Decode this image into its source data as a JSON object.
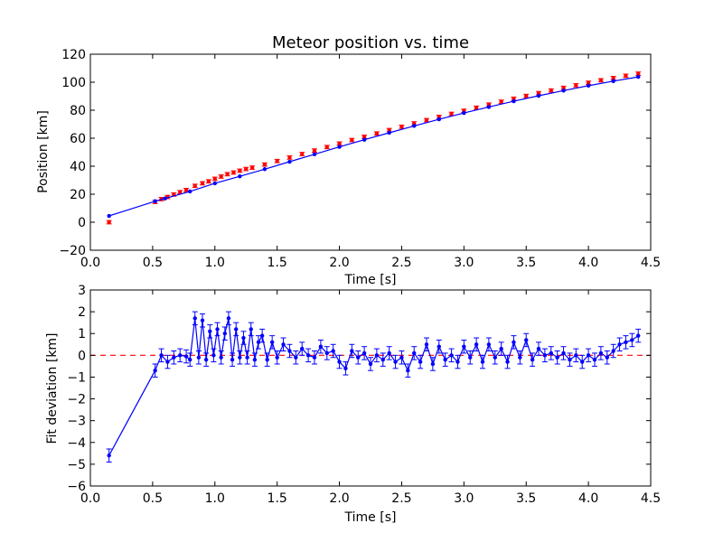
{
  "chart_data": [
    {
      "type": "line",
      "title": "Meteor position vs. time",
      "xlabel": "Time [s]",
      "ylabel": "Position [km]",
      "xlim": [
        0.0,
        4.5
      ],
      "ylim": [
        -20,
        120
      ],
      "xticks": [
        0.0,
        0.5,
        1.0,
        1.5,
        2.0,
        2.5,
        3.0,
        3.5,
        4.0,
        4.5
      ],
      "xtick_labels": [
        "0.0",
        "0.5",
        "1.0",
        "1.5",
        "2.0",
        "2.5",
        "3.0",
        "3.5",
        "4.0",
        "4.5"
      ],
      "yticks": [
        -20,
        0,
        20,
        40,
        60,
        80,
        100,
        120
      ],
      "ytick_labels": [
        "−20",
        "0",
        "20",
        "40",
        "60",
        "80",
        "100",
        "120"
      ],
      "grid": false,
      "series": [
        {
          "style": "red error-bar points",
          "color": "#ff0000",
          "x": [
            0.15,
            0.52,
            0.57,
            0.62,
            0.67,
            0.72,
            0.77,
            0.84,
            0.9,
            0.95,
            1.0,
            1.05,
            1.1,
            1.15,
            1.2,
            1.25,
            1.3,
            1.4,
            1.5,
            1.6,
            1.7,
            1.8,
            1.9,
            2.0,
            2.1,
            2.2,
            2.3,
            2.4,
            2.5,
            2.6,
            2.7,
            2.8,
            2.9,
            3.0,
            3.1,
            3.2,
            3.3,
            3.4,
            3.5,
            3.6,
            3.7,
            3.8,
            3.9,
            4.0,
            4.1,
            4.2,
            4.3,
            4.4
          ],
          "y": [
            0.0,
            14.5,
            16.5,
            18.0,
            19.8,
            21.5,
            23.0,
            26.0,
            27.8,
            29.2,
            31.0,
            32.6,
            34.3,
            35.5,
            36.8,
            38.0,
            39.0,
            41.2,
            43.7,
            46.2,
            48.7,
            51.2,
            53.7,
            56.2,
            58.7,
            61.0,
            63.4,
            65.8,
            68.2,
            70.6,
            72.9,
            75.2,
            77.4,
            79.6,
            81.8,
            84.0,
            86.1,
            88.2,
            90.2,
            92.2,
            94.1,
            96.0,
            97.8,
            99.6,
            101.4,
            103.0,
            104.6,
            106.1
          ],
          "yerr": 1.2
        },
        {
          "style": "blue line with points (fit)",
          "color": "#0000ff",
          "x": [
            0.15,
            0.52,
            0.6,
            0.8,
            1.0,
            1.2,
            1.4,
            1.6,
            1.8,
            2.0,
            2.2,
            2.4,
            2.6,
            2.8,
            3.0,
            3.2,
            3.4,
            3.6,
            3.8,
            4.0,
            4.2,
            4.4
          ],
          "y": [
            4.5,
            15.0,
            17.0,
            22.0,
            27.8,
            32.8,
            37.9,
            43.2,
            48.5,
            53.8,
            58.9,
            63.9,
            68.8,
            73.5,
            78.0,
            82.3,
            86.4,
            90.3,
            94.0,
            97.5,
            100.8,
            103.8
          ]
        }
      ]
    },
    {
      "type": "line",
      "title": "",
      "xlabel": "Time [s]",
      "ylabel": "Fit deviation [km]",
      "xlim": [
        0.0,
        4.5
      ],
      "ylim": [
        -6,
        3
      ],
      "xticks": [
        0.0,
        0.5,
        1.0,
        1.5,
        2.0,
        2.5,
        3.0,
        3.5,
        4.0,
        4.5
      ],
      "xtick_labels": [
        "0.0",
        "0.5",
        "1.0",
        "1.5",
        "2.0",
        "2.5",
        "3.0",
        "3.5",
        "4.0",
        "4.5"
      ],
      "yticks": [
        -6,
        -5,
        -4,
        -3,
        -2,
        -1,
        0,
        1,
        2,
        3
      ],
      "ytick_labels": [
        "−6",
        "−5",
        "−4",
        "−3",
        "−2",
        "−1",
        "0",
        "1",
        "2",
        "3"
      ],
      "grid": false,
      "reference_line": {
        "y": 0,
        "color": "#ff0000",
        "style": "dashed"
      },
      "series": [
        {
          "style": "blue line with error-bar points",
          "color": "#0000ff",
          "x": [
            0.15,
            0.52,
            0.57,
            0.62,
            0.67,
            0.72,
            0.77,
            0.8,
            0.84,
            0.87,
            0.9,
            0.93,
            0.96,
            0.99,
            1.02,
            1.05,
            1.08,
            1.11,
            1.14,
            1.17,
            1.2,
            1.23,
            1.26,
            1.29,
            1.32,
            1.35,
            1.38,
            1.42,
            1.46,
            1.5,
            1.55,
            1.6,
            1.65,
            1.7,
            1.75,
            1.8,
            1.85,
            1.9,
            1.95,
            2.0,
            2.05,
            2.1,
            2.15,
            2.2,
            2.25,
            2.3,
            2.35,
            2.4,
            2.45,
            2.5,
            2.55,
            2.6,
            2.65,
            2.7,
            2.75,
            2.8,
            2.85,
            2.9,
            2.95,
            3.0,
            3.05,
            3.1,
            3.15,
            3.2,
            3.25,
            3.3,
            3.35,
            3.4,
            3.45,
            3.5,
            3.55,
            3.6,
            3.65,
            3.7,
            3.75,
            3.8,
            3.85,
            3.9,
            3.95,
            4.0,
            4.05,
            4.1,
            4.15,
            4.2,
            4.25,
            4.3,
            4.35,
            4.4
          ],
          "y": [
            -4.6,
            -0.7,
            0.0,
            -0.3,
            -0.1,
            0.0,
            -0.05,
            -0.2,
            1.7,
            -0.1,
            1.6,
            -0.2,
            1.1,
            0.0,
            1.2,
            -0.1,
            1.0,
            1.7,
            -0.2,
            1.2,
            -0.1,
            0.8,
            -0.1,
            1.2,
            -0.2,
            0.6,
            0.9,
            -0.2,
            0.6,
            -0.1,
            0.5,
            0.2,
            -0.1,
            0.3,
            0.0,
            -0.1,
            0.4,
            0.1,
            0.2,
            -0.3,
            -0.6,
            0.2,
            -0.1,
            0.1,
            -0.4,
            0.0,
            -0.2,
            0.1,
            -0.3,
            -0.1,
            -0.7,
            0.1,
            -0.3,
            0.5,
            -0.4,
            0.4,
            -0.2,
            0.0,
            -0.3,
            0.4,
            -0.1,
            0.5,
            -0.3,
            0.5,
            -0.1,
            0.3,
            -0.3,
            0.6,
            -0.1,
            0.7,
            -0.2,
            0.3,
            0.0,
            0.1,
            -0.1,
            0.1,
            -0.2,
            0.0,
            -0.3,
            0.0,
            -0.2,
            0.1,
            -0.1,
            0.2,
            0.5,
            0.6,
            0.7,
            0.9
          ],
          "yerr": 0.3
        }
      ]
    }
  ]
}
